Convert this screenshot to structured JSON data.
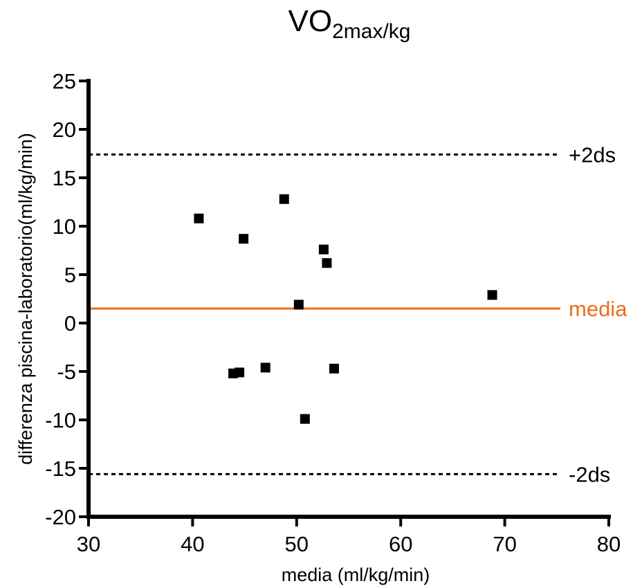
{
  "chart_data": {
    "type": "scatter",
    "title": "VO",
    "title_subscript": "2max/kg",
    "xlabel": "media (ml/kg/min)",
    "ylabel": "differenza piscina-laboratorio(ml/kg/min)",
    "xlim": [
      30,
      80
    ],
    "ylim": [
      -20,
      25
    ],
    "xticks": [
      "30",
      "40",
      "50",
      "60",
      "70",
      "80"
    ],
    "yticks": [
      "25",
      "20",
      "15",
      "10",
      "5",
      "0",
      "-5",
      "-10",
      "-15",
      "-20"
    ],
    "grid": false,
    "points": [
      {
        "x": 40.6,
        "y": 10.8
      },
      {
        "x": 44.9,
        "y": 8.7
      },
      {
        "x": 48.8,
        "y": 12.8
      },
      {
        "x": 52.6,
        "y": 7.6
      },
      {
        "x": 52.9,
        "y": 6.2
      },
      {
        "x": 50.2,
        "y": 1.9
      },
      {
        "x": 68.8,
        "y": 2.9
      },
      {
        "x": 43.9,
        "y": -5.2
      },
      {
        "x": 44.5,
        "y": -5.1
      },
      {
        "x": 47.0,
        "y": -4.6
      },
      {
        "x": 53.6,
        "y": -4.7
      },
      {
        "x": 50.8,
        "y": -9.9
      }
    ],
    "reference_lines": [
      {
        "label": "+2ds",
        "y": 17.4,
        "style": "dotted",
        "color": "#000000"
      },
      {
        "label": "media",
        "y": 1.5,
        "style": "solid",
        "color": "#ef6c1a"
      },
      {
        "label": "-2ds",
        "y": -15.6,
        "style": "dotted",
        "color": "#000000"
      }
    ],
    "colors": {
      "points": "#000000",
      "axis": "#000000",
      "mean": "#ef6c1a"
    }
  }
}
